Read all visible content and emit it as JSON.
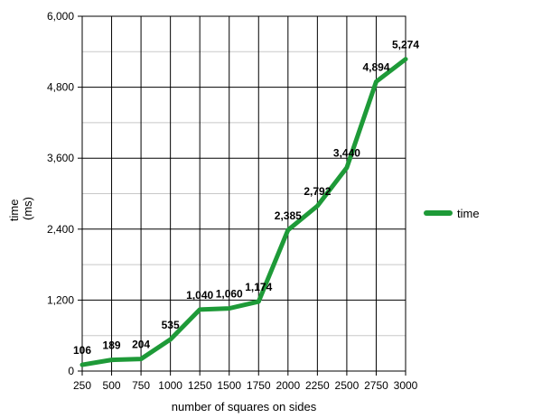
{
  "chart_data": {
    "type": "line",
    "title": "",
    "xlabel": "number of squares on sides",
    "ylabel_lines": [
      "time",
      "(ms)"
    ],
    "x": [
      250,
      500,
      750,
      1000,
      1250,
      1500,
      1750,
      2000,
      2250,
      2500,
      2750,
      3000
    ],
    "x_tick_labels": [
      "250",
      "500",
      "750",
      "1000",
      "1250",
      "1500",
      "1750",
      "2000",
      "2250",
      "2500",
      "2750",
      "3000"
    ],
    "series": [
      {
        "name": "time",
        "color": "#1e9a38",
        "values": [
          106,
          189,
          204,
          535,
          1040,
          1060,
          1174,
          2385,
          2792,
          3440,
          4894,
          5274
        ],
        "data_labels": [
          "106",
          "189",
          "204",
          "535",
          "1,040",
          "1,060",
          "1,174",
          "2,385",
          "2,792",
          "3,440",
          "4,894",
          "5,274"
        ]
      }
    ],
    "ylim": [
      0,
      6000
    ],
    "y_ticks": [
      0,
      1200,
      2400,
      3600,
      4800,
      6000
    ],
    "y_tick_labels": [
      "0",
      "1,200",
      "2,400",
      "3,600",
      "4,800",
      "6,000"
    ],
    "y_minor_gridlines": [
      600,
      1800,
      3000,
      4200,
      5400
    ],
    "grid": true,
    "legend_position": "right"
  }
}
